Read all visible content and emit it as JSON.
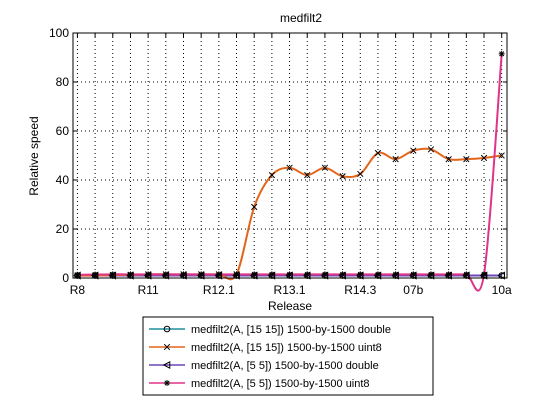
{
  "chart_data": {
    "type": "line",
    "title": "medfilt2",
    "xlabel": "Release",
    "ylabel": "Relative speed",
    "ylim": [
      0,
      100
    ],
    "yticks": [
      0,
      20,
      40,
      60,
      80,
      100
    ],
    "xtick_labels": [
      "R8",
      "R11",
      "R12.1",
      "R13.1",
      "R14.3",
      "07b",
      "10a"
    ],
    "grid": true,
    "legend_position": "below",
    "x": [
      0,
      1,
      2,
      3,
      4,
      5,
      6,
      7,
      8,
      9,
      10,
      11,
      12,
      13,
      14,
      15,
      16,
      17,
      18,
      19,
      20,
      21,
      22,
      23,
      24
    ],
    "series": [
      {
        "name": "medfilt2(A, [15 15])  1500-by-1500 double",
        "color": "#1f8f9f",
        "marker": "circle",
        "values": [
          1.0,
          1.0,
          1.0,
          1.0,
          1.0,
          1.0,
          1.0,
          1.0,
          1.0,
          1.0,
          1.0,
          1.0,
          1.0,
          1.0,
          1.0,
          1.0,
          1.0,
          1.0,
          1.0,
          1.0,
          1.0,
          1.0,
          1.0,
          1.0,
          1.0
        ]
      },
      {
        "name": "medfilt2(A, [15 15])  1500-by-1500 uint8",
        "color": "#e2661c",
        "marker": "x",
        "values": [
          1.0,
          1.0,
          1.2,
          1.3,
          1.5,
          1.5,
          1.5,
          1.5,
          1.5,
          1.5,
          29.0,
          42.0,
          45.0,
          42.0,
          45.0,
          41.5,
          42.5,
          51.0,
          48.5,
          52.0,
          52.5,
          48.5,
          48.5,
          49.0,
          50.0
        ]
      },
      {
        "name": "medfilt2(A, [5 5])  1500-by-1500 double",
        "color": "#6b47b8",
        "marker": "triangle-left",
        "values": [
          1.0,
          1.0,
          1.0,
          1.0,
          1.0,
          1.0,
          1.0,
          1.0,
          1.0,
          1.0,
          1.0,
          1.0,
          1.0,
          1.0,
          1.0,
          1.0,
          1.0,
          1.0,
          1.0,
          1.0,
          1.0,
          1.0,
          1.0,
          1.0,
          1.0
        ]
      },
      {
        "name": "medfilt2(A, [5 5])  1500-by-1500 uint8",
        "color": "#e0338a",
        "marker": "star",
        "values": [
          1.3,
          1.4,
          1.5,
          1.5,
          1.5,
          1.5,
          1.5,
          1.5,
          1.5,
          1.5,
          1.5,
          1.5,
          1.5,
          1.5,
          1.5,
          1.5,
          1.5,
          1.5,
          1.5,
          1.5,
          1.5,
          1.5,
          1.5,
          1.5,
          91.5
        ]
      }
    ]
  }
}
